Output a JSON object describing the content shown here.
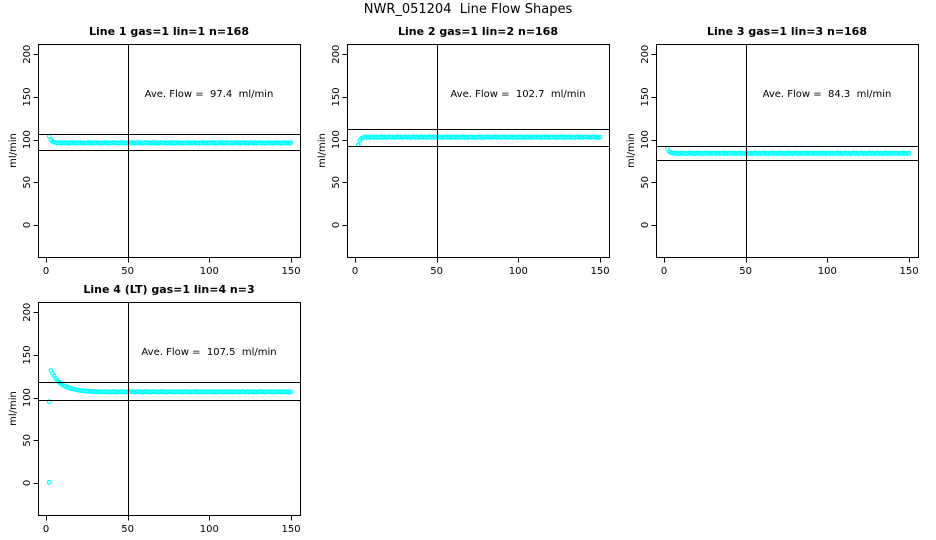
{
  "title": "NWR_051204  Line Flow Shapes",
  "colors": {
    "points": "#00FFFF",
    "axis": "#000000",
    "background": "#FFFFFF"
  },
  "chart_data": [
    {
      "type": "scatter",
      "title": "Line 1 gas=1 lin=1 n=168",
      "annotation": "Ave. Flow =  97.4  ml/min",
      "ave_flow": 97.4,
      "n": 168,
      "ylabel": "ml/min",
      "x_ticks": [
        0,
        50,
        100,
        150
      ],
      "y_ticks": [
        0,
        50,
        100,
        150,
        200
      ],
      "xlim": [
        -4.9,
        155.5
      ],
      "ylim": [
        -37.5,
        212
      ],
      "vline_x": 50,
      "hlines": [
        107.1,
        87.7
      ],
      "x_start": 2,
      "x_step": 1,
      "y": [
        103.8,
        99.6,
        97.8,
        96.9,
        96.7,
        95.8,
        96.5,
        95.7,
        96.3,
        96.6,
        95.9,
        96.4,
        95.7,
        96.2,
        96.7,
        95.8,
        96.5,
        95.7,
        96.3,
        96.6,
        95.9,
        96.4,
        95.7,
        96.2,
        96.7,
        95.8,
        96.5,
        95.7,
        96.3,
        96.6,
        95.9,
        96.4,
        95.7,
        96.2,
        96.7,
        95.8,
        96.5,
        95.7,
        96.3,
        96.6,
        95.9,
        96.4,
        95.7,
        96.2,
        96.7,
        95.8,
        96.5,
        95.7,
        96.3,
        96.6,
        95.9,
        96.4,
        95.7,
        96.2,
        96.7,
        95.8,
        96.5,
        95.7,
        96.3,
        96.6,
        95.9,
        96.4,
        95.7,
        96.2,
        96.7,
        95.8,
        96.5,
        95.7,
        96.3,
        96.6,
        95.9,
        96.4,
        95.7,
        96.2,
        96.7,
        95.8,
        96.5,
        95.7,
        96.3,
        96.6,
        95.9,
        96.4,
        95.7,
        96.2,
        96.7,
        95.8,
        96.5,
        95.7,
        96.3,
        96.6,
        95.9,
        96.4,
        95.7,
        96.2,
        96.7,
        95.8,
        96.5,
        95.7,
        96.3,
        96.6,
        95.9,
        96.4,
        95.7,
        96.2,
        96.7,
        95.8,
        96.5,
        95.7,
        96.3,
        96.6,
        95.9,
        96.4,
        95.7,
        96.2,
        96.7,
        95.8,
        96.5,
        95.7,
        96.3,
        96.6,
        95.9,
        96.4,
        95.7,
        96.2,
        96.7,
        95.8,
        96.5,
        95.7,
        96.3,
        96.6,
        95.9,
        96.4,
        95.7,
        96.2,
        96.7,
        95.8,
        96.5,
        95.7,
        96.3,
        96.6,
        95.9,
        96.4,
        95.7,
        96.2,
        96.7,
        95.8,
        96.5,
        95.7,
        96.3
      ],
      "outliers": []
    },
    {
      "type": "scatter",
      "title": "Line 2 gas=1 lin=2 n=168",
      "annotation": "Ave. Flow =  102.7  ml/min",
      "ave_flow": 102.7,
      "n": 168,
      "ylabel": "ml/min",
      "x_ticks": [
        0,
        50,
        100,
        150
      ],
      "y_ticks": [
        0,
        50,
        100,
        150,
        200
      ],
      "xlim": [
        -4.9,
        155.5
      ],
      "ylim": [
        -37.5,
        212
      ],
      "vline_x": 50,
      "hlines": [
        113.0,
        92.4
      ],
      "x_start": 2,
      "x_step": 1,
      "y": [
        93.8,
        98.9,
        101.4,
        102.3,
        103.4,
        102.5,
        103.2,
        102.4,
        103.0,
        103.3,
        102.6,
        103.1,
        102.4,
        102.9,
        103.4,
        102.5,
        103.2,
        102.4,
        103.0,
        103.3,
        102.6,
        103.1,
        102.4,
        102.9,
        103.4,
        102.5,
        103.2,
        102.4,
        103.0,
        103.3,
        102.6,
        103.1,
        102.4,
        102.9,
        103.4,
        102.5,
        103.2,
        102.4,
        103.0,
        103.3,
        102.6,
        103.1,
        102.4,
        102.9,
        103.4,
        102.5,
        103.2,
        102.4,
        103.0,
        103.3,
        102.6,
        103.1,
        102.4,
        102.9,
        103.4,
        102.5,
        103.2,
        102.4,
        103.0,
        103.3,
        102.6,
        103.1,
        102.4,
        102.9,
        103.4,
        102.5,
        103.2,
        102.4,
        103.0,
        103.3,
        102.6,
        103.1,
        102.4,
        102.9,
        103.4,
        102.5,
        103.2,
        102.4,
        103.0,
        103.3,
        102.6,
        103.1,
        102.4,
        102.9,
        103.4,
        102.5,
        103.2,
        102.4,
        103.0,
        103.3,
        102.6,
        103.1,
        102.4,
        102.9,
        103.4,
        102.5,
        103.2,
        102.4,
        103.0,
        103.3,
        102.6,
        103.1,
        102.4,
        102.9,
        103.4,
        102.5,
        103.2,
        102.4,
        103.0,
        103.3,
        102.6,
        103.1,
        102.4,
        102.9,
        103.4,
        102.5,
        103.2,
        102.4,
        103.0,
        103.3,
        102.6,
        103.1,
        102.4,
        102.9,
        103.4,
        102.5,
        103.2,
        102.4,
        103.0,
        103.3,
        102.6,
        103.1,
        102.4,
        102.9,
        103.4,
        102.5,
        103.2,
        102.4,
        103.0,
        103.3,
        102.6,
        103.1,
        102.4,
        102.9,
        103.4,
        102.5,
        103.2,
        102.4,
        103.0
      ],
      "outliers": []
    },
    {
      "type": "scatter",
      "title": "Line 3 gas=1 lin=3 n=168",
      "annotation": "Ave. Flow =  84.3  ml/min",
      "ave_flow": 84.3,
      "n": 168,
      "ylabel": "ml/min",
      "x_ticks": [
        0,
        50,
        100,
        150
      ],
      "y_ticks": [
        0,
        50,
        100,
        150,
        200
      ],
      "xlim": [
        -4.9,
        155.5
      ],
      "ylim": [
        -37.5,
        212
      ],
      "vline_x": 50,
      "hlines": [
        92.7,
        75.9
      ],
      "x_start": 2,
      "x_step": 1,
      "y": [
        89.8,
        86.1,
        84.9,
        84.4,
        84.5,
        83.6,
        84.3,
        83.5,
        84.1,
        84.4,
        83.7,
        84.2,
        83.5,
        84.0,
        84.5,
        83.6,
        84.3,
        83.5,
        84.1,
        84.4,
        83.7,
        84.2,
        83.5,
        84.0,
        84.5,
        83.6,
        84.3,
        83.5,
        84.1,
        84.4,
        83.7,
        84.2,
        83.5,
        84.0,
        84.5,
        83.6,
        84.3,
        83.5,
        84.1,
        84.4,
        83.7,
        84.2,
        83.5,
        84.0,
        84.5,
        83.6,
        84.3,
        83.5,
        84.1,
        84.4,
        83.7,
        84.2,
        83.5,
        84.0,
        84.5,
        83.6,
        84.3,
        83.5,
        84.1,
        84.4,
        83.7,
        84.2,
        83.5,
        84.0,
        84.5,
        83.6,
        84.3,
        83.5,
        84.1,
        84.4,
        83.7,
        84.2,
        83.5,
        84.0,
        84.5,
        83.6,
        84.3,
        83.5,
        84.1,
        84.4,
        83.7,
        84.2,
        83.5,
        84.0,
        84.5,
        83.6,
        84.3,
        83.5,
        84.1,
        84.4,
        83.7,
        84.2,
        83.5,
        84.0,
        84.5,
        83.6,
        84.3,
        83.5,
        84.1,
        84.4,
        83.7,
        84.2,
        83.5,
        84.0,
        84.5,
        83.6,
        84.3,
        83.5,
        84.1,
        84.4,
        83.7,
        84.2,
        83.5,
        84.0,
        84.5,
        83.6,
        84.3,
        83.5,
        84.1,
        84.4,
        83.7,
        84.2,
        83.5,
        84.0,
        84.5,
        83.6,
        84.3,
        83.5,
        84.1,
        84.4,
        83.7,
        84.2,
        83.5,
        84.0,
        84.5,
        83.6,
        84.3,
        83.5,
        84.1,
        84.4,
        83.7,
        84.2,
        83.5,
        84.0,
        84.5,
        83.6,
        84.3,
        83.5,
        84.1
      ],
      "outliers": []
    },
    {
      "type": "scatter",
      "title": "Line 4 (LT) gas=1 lin=4 n=3",
      "annotation": "Ave. Flow =  107.5  ml/min",
      "ave_flow": 107.5,
      "n": 3,
      "ylabel": "ml/min",
      "x_ticks": [
        0,
        50,
        100,
        150
      ],
      "y_ticks": [
        0,
        50,
        100,
        150,
        200
      ],
      "xlim": [
        -4.9,
        155.5
      ],
      "ylim": [
        -37.5,
        212
      ],
      "vline_x": 50,
      "hlines": [
        118.3,
        96.8
      ],
      "x_start": 3,
      "x_step": 1,
      "y": [
        131.8,
        128.4,
        125.3,
        122.4,
        120.1,
        118.2,
        116.5,
        115.1,
        113.9,
        113.2,
        112.3,
        111.5,
        110.9,
        110.3,
        109.8,
        109.4,
        108.9,
        108.7,
        108.3,
        108.1,
        107.9,
        107.7,
        107.6,
        107.4,
        107.3,
        107.2,
        107.1,
        107.0,
        107.2,
        106.5,
        107.0,
        106.4,
        106.8,
        107.1,
        106.5,
        106.9,
        106.4,
        106.7,
        107.2,
        106.5,
        107.0,
        106.4,
        106.8,
        107.1,
        106.5,
        106.9,
        106.4,
        106.7,
        107.2,
        106.5,
        107.0,
        106.4,
        106.8,
        107.1,
        106.5,
        106.9,
        106.4,
        106.7,
        107.2,
        106.5,
        107.0,
        106.4,
        106.8,
        107.1,
        106.5,
        106.9,
        106.4,
        106.7,
        107.2,
        106.5,
        107.0,
        106.4,
        106.8,
        107.1,
        106.5,
        106.9,
        106.4,
        106.7,
        107.2,
        106.5,
        107.0,
        106.4,
        106.8,
        107.1,
        106.5,
        106.9,
        106.4,
        106.7,
        107.2,
        106.5,
        107.0,
        106.4,
        106.8,
        107.1,
        106.5,
        106.9,
        106.4,
        106.7,
        107.2,
        106.5,
        107.0,
        106.4,
        106.8,
        107.1,
        106.5,
        106.9,
        106.4,
        106.7,
        107.2,
        106.5,
        107.0,
        106.4,
        106.8,
        107.1,
        106.5,
        106.9,
        106.4,
        106.7,
        107.2,
        106.5,
        107.0,
        106.4,
        106.8,
        107.1,
        106.5,
        106.9,
        106.4,
        106.7,
        107.2,
        106.5,
        107.0,
        106.4,
        106.8,
        107.1,
        106.5,
        106.9,
        106.4,
        106.7,
        107.2,
        106.5,
        107.0,
        106.4,
        106.8,
        107.1,
        106.5,
        106.9,
        106.4,
        106.7
      ],
      "outliers": [
        [
          2,
          95.2
        ],
        [
          2,
          0.8
        ]
      ]
    }
  ]
}
